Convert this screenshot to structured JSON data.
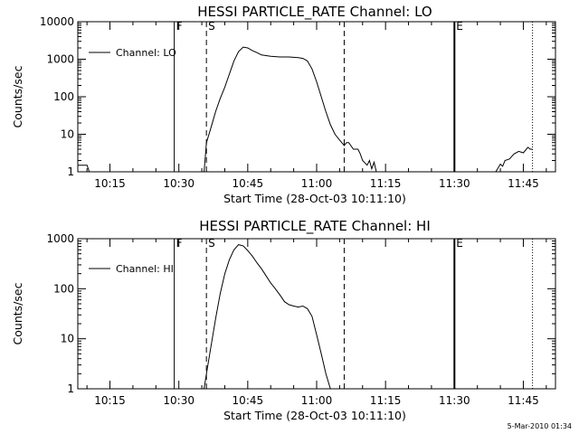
{
  "footer_stamp": "5-Mar-2010 01:34",
  "chart_data": [
    {
      "type": "line",
      "title": "HESSI PARTICLE_RATE Channel: LO",
      "xlabel": "Start Time (28-Oct-03 10:11:10)",
      "ylabel": "Counts/sec",
      "yscale": "log",
      "ylim": [
        1,
        10000
      ],
      "xlim": [
        "10:08",
        "11:52"
      ],
      "yticks": [
        "1",
        "10",
        "100",
        "1000",
        "10000"
      ],
      "xticks": [
        "10:15",
        "10:30",
        "10:45",
        "11:00",
        "11:15",
        "11:30",
        "11:45"
      ],
      "legend": {
        "position": "top-left",
        "entries": [
          "Channel: LO"
        ]
      },
      "markers": [
        {
          "label": "F",
          "time": "10:29",
          "style": "solid"
        },
        {
          "label": "S",
          "time": "10:36",
          "style": "dashed"
        },
        {
          "label": "",
          "time": "11:06",
          "style": "dashed"
        },
        {
          "label": "E",
          "time": "11:30",
          "style": "solid"
        },
        {
          "label": "",
          "time": "11:47",
          "style": "dotted"
        }
      ],
      "series": [
        {
          "name": "Channel: LO",
          "segments": [
            {
              "x": [
                "10:08",
                "10:09",
                "10:10",
                "10:10.5"
              ],
              "y": [
                1.5,
                1.5,
                1.5,
                1
              ]
            },
            {
              "x": [
                "10:35.5",
                "10:36",
                "10:37",
                "10:38",
                "10:39",
                "10:40",
                "10:41",
                "10:42",
                "10:43",
                "10:44",
                "10:45",
                "10:46",
                "10:47",
                "10:48",
                "10:50",
                "10:52",
                "10:54",
                "10:56",
                "10:57",
                "10:58",
                "10:59",
                "11:00",
                "11:01",
                "11:02",
                "11:03",
                "11:04",
                "11:05",
                "11:06",
                "11:06.5",
                "11:07",
                "11:08",
                "11:09",
                "11:09.5",
                "11:10",
                "11:11",
                "11:11.5",
                "11:12",
                "11:12.5",
                "11:13"
              ],
              "y": [
                1,
                6,
                15,
                40,
                90,
                180,
                400,
                900,
                1600,
                2100,
                2000,
                1700,
                1500,
                1300,
                1200,
                1150,
                1150,
                1100,
                1050,
                900,
                550,
                250,
                100,
                40,
                18,
                10,
                7,
                5,
                6,
                6,
                4,
                4,
                3,
                2,
                1.5,
                2,
                1.2,
                1.8,
                1
              ]
            },
            {
              "x": [
                "11:39",
                "11:40",
                "11:40.5",
                "11:41",
                "11:42",
                "11:42.5",
                "11:43",
                "11:44",
                "11:45",
                "11:46",
                "11:46.5",
                "11:47"
              ],
              "y": [
                1,
                1.6,
                1.4,
                2,
                2.2,
                2.6,
                3,
                3.5,
                3.2,
                4.5,
                4,
                4
              ]
            }
          ]
        }
      ]
    },
    {
      "type": "line",
      "title": "HESSI PARTICLE_RATE Channel: HI",
      "xlabel": "Start Time (28-Oct-03 10:11:10)",
      "ylabel": "Counts/sec",
      "yscale": "log",
      "ylim": [
        1,
        1000
      ],
      "xlim": [
        "10:08",
        "11:52"
      ],
      "yticks": [
        "1",
        "10",
        "100",
        "1000"
      ],
      "xticks": [
        "10:15",
        "10:30",
        "10:45",
        "11:00",
        "11:15",
        "11:30",
        "11:45"
      ],
      "legend": {
        "position": "top-left",
        "entries": [
          "Channel: HI"
        ]
      },
      "markers": [
        {
          "label": "F",
          "time": "10:29",
          "style": "solid"
        },
        {
          "label": "S",
          "time": "10:36",
          "style": "dashed"
        },
        {
          "label": "",
          "time": "11:06",
          "style": "dashed"
        },
        {
          "label": "E",
          "time": "11:30",
          "style": "solid"
        },
        {
          "label": "",
          "time": "11:47",
          "style": "dotted"
        }
      ],
      "series": [
        {
          "name": "Channel: HI",
          "segments": [
            {
              "x": [
                "10:35.5",
                "10:36",
                "10:37",
                "10:38",
                "10:39",
                "10:40",
                "10:41",
                "10:42",
                "10:43",
                "10:44",
                "10:45",
                "10:46",
                "10:47",
                "10:48",
                "10:49",
                "10:50",
                "10:51",
                "10:52",
                "10:53",
                "10:54",
                "10:55",
                "10:56",
                "10:57",
                "10:58",
                "10:59",
                "11:00",
                "11:01",
                "11:02",
                "11:03"
              ],
              "y": [
                1,
                2,
                7,
                25,
                80,
                200,
                380,
                600,
                760,
                720,
                580,
                450,
                330,
                250,
                180,
                130,
                100,
                75,
                55,
                48,
                45,
                43,
                45,
                40,
                28,
                12,
                5,
                2,
                1
              ]
            }
          ]
        }
      ]
    }
  ]
}
